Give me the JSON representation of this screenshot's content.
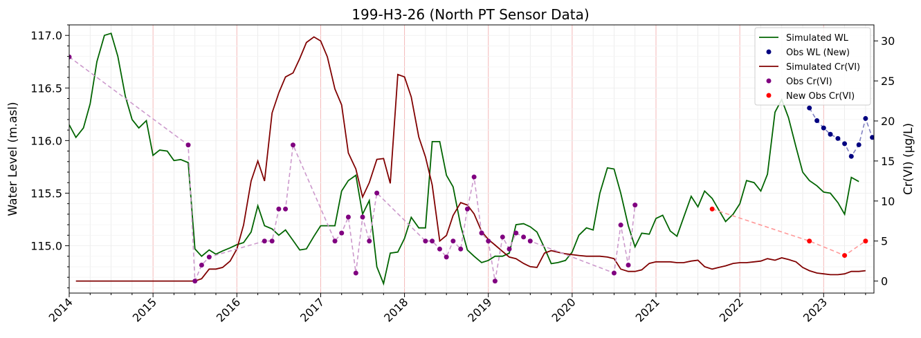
{
  "chart_data": {
    "type": "line",
    "title": "199-H3-26 (North PT Sensor Data)",
    "ylabel_left": "Water Level (m.asl)",
    "ylabel_right": "Cr(VI) (µg/L)",
    "xlim": [
      2014.0,
      2023.6
    ],
    "ylim_left": [
      114.55,
      117.1
    ],
    "ylim_right": [
      -1.5,
      32
    ],
    "x_ticks": [
      {
        "v": 2014,
        "label": "2014"
      },
      {
        "v": 2015,
        "label": "2015"
      },
      {
        "v": 2016,
        "label": "2016"
      },
      {
        "v": 2017,
        "label": "2017"
      },
      {
        "v": 2018,
        "label": "2018"
      },
      {
        "v": 2019,
        "label": "2019"
      },
      {
        "v": 2020,
        "label": "2020"
      },
      {
        "v": 2021,
        "label": "2021"
      },
      {
        "v": 2022,
        "label": "2022"
      },
      {
        "v": 2023,
        "label": "2023"
      }
    ],
    "y_ticks_left": [
      {
        "v": 115.0,
        "label": "115.0"
      },
      {
        "v": 115.5,
        "label": "115.5"
      },
      {
        "v": 116.0,
        "label": "116.0"
      },
      {
        "v": 116.5,
        "label": "116.5"
      },
      {
        "v": 117.0,
        "label": "117.0"
      }
    ],
    "y_ticks_right": [
      {
        "v": 0,
        "label": "0"
      },
      {
        "v": 5,
        "label": "5"
      },
      {
        "v": 10,
        "label": "10"
      },
      {
        "v": 15,
        "label": "15"
      },
      {
        "v": 20,
        "label": "20"
      },
      {
        "v": 25,
        "label": "25"
      },
      {
        "v": 30,
        "label": "30"
      }
    ],
    "grid": true,
    "legend_position": "top-right",
    "series": [
      {
        "name": "Simulated WL",
        "axis": "left",
        "kind": "line",
        "color": "#006400",
        "points": [
          [
            2014.0,
            116.15
          ],
          [
            2014.08,
            116.03
          ],
          [
            2014.17,
            116.12
          ],
          [
            2014.25,
            116.35
          ],
          [
            2014.33,
            116.75
          ],
          [
            2014.42,
            117.0
          ],
          [
            2014.5,
            117.02
          ],
          [
            2014.58,
            116.8
          ],
          [
            2014.67,
            116.42
          ],
          [
            2014.75,
            116.2
          ],
          [
            2014.83,
            116.12
          ],
          [
            2014.92,
            116.19
          ],
          [
            2015.0,
            115.86
          ],
          [
            2015.08,
            115.91
          ],
          [
            2015.17,
            115.9
          ],
          [
            2015.25,
            115.81
          ],
          [
            2015.33,
            115.82
          ],
          [
            2015.42,
            115.79
          ],
          [
            2015.5,
            114.97
          ],
          [
            2015.58,
            114.9
          ],
          [
            2015.67,
            114.96
          ],
          [
            2015.75,
            114.92
          ],
          [
            2015.83,
            114.95
          ],
          [
            2015.92,
            114.98
          ],
          [
            2016.0,
            115.01
          ],
          [
            2016.08,
            115.03
          ],
          [
            2016.17,
            115.13
          ],
          [
            2016.25,
            115.38
          ],
          [
            2016.33,
            115.19
          ],
          [
            2016.42,
            115.16
          ],
          [
            2016.5,
            115.1
          ],
          [
            2016.58,
            115.15
          ],
          [
            2016.67,
            115.05
          ],
          [
            2016.75,
            114.96
          ],
          [
            2016.83,
            114.97
          ],
          [
            2016.92,
            115.09
          ],
          [
            2017.0,
            115.19
          ],
          [
            2017.08,
            115.19
          ],
          [
            2017.17,
            115.19
          ],
          [
            2017.25,
            115.52
          ],
          [
            2017.33,
            115.62
          ],
          [
            2017.42,
            115.67
          ],
          [
            2017.5,
            115.3
          ],
          [
            2017.58,
            115.43
          ],
          [
            2017.67,
            114.8
          ],
          [
            2017.75,
            114.64
          ],
          [
            2017.83,
            114.93
          ],
          [
            2017.92,
            114.94
          ],
          [
            2018.0,
            115.07
          ],
          [
            2018.08,
            115.27
          ],
          [
            2018.17,
            115.17
          ],
          [
            2018.25,
            115.17
          ],
          [
            2018.33,
            115.99
          ],
          [
            2018.42,
            115.99
          ],
          [
            2018.5,
            115.67
          ],
          [
            2018.58,
            115.56
          ],
          [
            2018.67,
            115.19
          ],
          [
            2018.75,
            114.96
          ],
          [
            2018.83,
            114.9
          ],
          [
            2018.92,
            114.84
          ],
          [
            2019.0,
            114.86
          ],
          [
            2019.08,
            114.9
          ],
          [
            2019.17,
            114.9
          ],
          [
            2019.25,
            114.93
          ],
          [
            2019.33,
            115.2
          ],
          [
            2019.42,
            115.21
          ],
          [
            2019.5,
            115.18
          ],
          [
            2019.58,
            115.13
          ],
          [
            2019.67,
            114.98
          ],
          [
            2019.75,
            114.83
          ],
          [
            2019.83,
            114.84
          ],
          [
            2019.92,
            114.86
          ],
          [
            2020.0,
            114.94
          ],
          [
            2020.08,
            115.1
          ],
          [
            2020.17,
            115.17
          ],
          [
            2020.25,
            115.15
          ],
          [
            2020.33,
            115.5
          ],
          [
            2020.42,
            115.74
          ],
          [
            2020.5,
            115.73
          ],
          [
            2020.58,
            115.5
          ],
          [
            2020.67,
            115.19
          ],
          [
            2020.75,
            114.99
          ],
          [
            2020.83,
            115.12
          ],
          [
            2020.92,
            115.11
          ],
          [
            2021.0,
            115.26
          ],
          [
            2021.08,
            115.29
          ],
          [
            2021.17,
            115.14
          ],
          [
            2021.25,
            115.09
          ],
          [
            2021.33,
            115.27
          ],
          [
            2021.42,
            115.47
          ],
          [
            2021.5,
            115.37
          ],
          [
            2021.58,
            115.52
          ],
          [
            2021.67,
            115.45
          ],
          [
            2021.75,
            115.34
          ],
          [
            2021.83,
            115.23
          ],
          [
            2021.92,
            115.3
          ],
          [
            2022.0,
            115.4
          ],
          [
            2022.08,
            115.62
          ],
          [
            2022.17,
            115.6
          ],
          [
            2022.25,
            115.52
          ],
          [
            2022.33,
            115.68
          ],
          [
            2022.42,
            116.27
          ],
          [
            2022.5,
            116.39
          ],
          [
            2022.58,
            116.22
          ],
          [
            2022.67,
            115.94
          ],
          [
            2022.75,
            115.7
          ],
          [
            2022.83,
            115.62
          ],
          [
            2022.92,
            115.57
          ],
          [
            2023.0,
            115.51
          ],
          [
            2023.08,
            115.5
          ],
          [
            2023.17,
            115.41
          ],
          [
            2023.25,
            115.3
          ],
          [
            2023.33,
            115.65
          ],
          [
            2023.42,
            115.61
          ]
        ]
      },
      {
        "name": "Obs WL (New)",
        "axis": "left",
        "kind": "scatter",
        "color": "#000080",
        "connector_color": "#8080c0",
        "points": [
          [
            2022.83,
            116.31
          ],
          [
            2022.92,
            116.19
          ],
          [
            2023.0,
            116.12
          ],
          [
            2023.08,
            116.06
          ],
          [
            2023.17,
            116.02
          ],
          [
            2023.25,
            115.97
          ],
          [
            2023.33,
            115.85
          ],
          [
            2023.42,
            115.96
          ],
          [
            2023.5,
            116.21
          ],
          [
            2023.58,
            116.03
          ],
          [
            2023.67,
            115.97
          ]
        ]
      },
      {
        "name": "Simulated Cr(VI)",
        "axis": "right",
        "kind": "line",
        "color": "#800000",
        "points": [
          [
            2014.08,
            0
          ],
          [
            2015.5,
            0
          ],
          [
            2015.58,
            0.3
          ],
          [
            2015.67,
            1.5
          ],
          [
            2015.75,
            1.5
          ],
          [
            2015.83,
            1.7
          ],
          [
            2015.92,
            2.5
          ],
          [
            2016.0,
            4.0
          ],
          [
            2016.08,
            7.0
          ],
          [
            2016.17,
            12.5
          ],
          [
            2016.25,
            15.0
          ],
          [
            2016.33,
            12.5
          ],
          [
            2016.42,
            21.0
          ],
          [
            2016.5,
            23.5
          ],
          [
            2016.58,
            25.5
          ],
          [
            2016.67,
            26.0
          ],
          [
            2016.75,
            27.8
          ],
          [
            2016.83,
            29.8
          ],
          [
            2016.92,
            30.5
          ],
          [
            2017.0,
            30.0
          ],
          [
            2017.08,
            28.0
          ],
          [
            2017.17,
            24.0
          ],
          [
            2017.25,
            22.0
          ],
          [
            2017.33,
            16.0
          ],
          [
            2017.42,
            14.0
          ],
          [
            2017.5,
            10.5
          ],
          [
            2017.58,
            12.3
          ],
          [
            2017.67,
            15.2
          ],
          [
            2017.75,
            15.3
          ],
          [
            2017.83,
            12.2
          ],
          [
            2017.92,
            25.8
          ],
          [
            2018.0,
            25.5
          ],
          [
            2018.08,
            23.0
          ],
          [
            2018.17,
            18.0
          ],
          [
            2018.25,
            15.5
          ],
          [
            2018.33,
            12.0
          ],
          [
            2018.42,
            5.0
          ],
          [
            2018.5,
            5.7
          ],
          [
            2018.58,
            8.2
          ],
          [
            2018.67,
            9.8
          ],
          [
            2018.75,
            9.5
          ],
          [
            2018.83,
            8.4
          ],
          [
            2018.92,
            6.2
          ],
          [
            2019.0,
            5.2
          ],
          [
            2019.08,
            4.5
          ],
          [
            2019.17,
            3.7
          ],
          [
            2019.25,
            3.0
          ],
          [
            2019.33,
            2.8
          ],
          [
            2019.42,
            2.2
          ],
          [
            2019.5,
            1.8
          ],
          [
            2019.58,
            1.7
          ],
          [
            2019.67,
            3.5
          ],
          [
            2019.75,
            3.8
          ],
          [
            2019.83,
            3.6
          ],
          [
            2019.92,
            3.4
          ],
          [
            2020.0,
            3.3
          ],
          [
            2020.08,
            3.2
          ],
          [
            2020.17,
            3.1
          ],
          [
            2020.25,
            3.1
          ],
          [
            2020.33,
            3.1
          ],
          [
            2020.42,
            3.0
          ],
          [
            2020.5,
            2.8
          ],
          [
            2020.58,
            1.5
          ],
          [
            2020.67,
            1.2
          ],
          [
            2020.75,
            1.2
          ],
          [
            2020.83,
            1.4
          ],
          [
            2020.92,
            2.2
          ],
          [
            2021.0,
            2.4
          ],
          [
            2021.08,
            2.4
          ],
          [
            2021.17,
            2.4
          ],
          [
            2021.25,
            2.3
          ],
          [
            2021.33,
            2.3
          ],
          [
            2021.42,
            2.5
          ],
          [
            2021.5,
            2.6
          ],
          [
            2021.58,
            1.8
          ],
          [
            2021.67,
            1.5
          ],
          [
            2021.75,
            1.7
          ],
          [
            2021.83,
            1.9
          ],
          [
            2021.92,
            2.2
          ],
          [
            2022.0,
            2.3
          ],
          [
            2022.08,
            2.3
          ],
          [
            2022.17,
            2.4
          ],
          [
            2022.25,
            2.5
          ],
          [
            2022.33,
            2.8
          ],
          [
            2022.42,
            2.6
          ],
          [
            2022.5,
            2.9
          ],
          [
            2022.58,
            2.7
          ],
          [
            2022.67,
            2.4
          ],
          [
            2022.75,
            1.7
          ],
          [
            2022.83,
            1.3
          ],
          [
            2022.92,
            1.0
          ],
          [
            2023.0,
            0.9
          ],
          [
            2023.08,
            0.8
          ],
          [
            2023.17,
            0.8
          ],
          [
            2023.25,
            0.9
          ],
          [
            2023.33,
            1.2
          ],
          [
            2023.42,
            1.2
          ],
          [
            2023.5,
            1.3
          ]
        ]
      },
      {
        "name": "Obs Cr(VI)",
        "axis": "right",
        "kind": "scatter",
        "color": "#800080",
        "connector_color": "#cc99cc",
        "points": [
          [
            2014.0,
            28
          ],
          [
            2015.42,
            17
          ],
          [
            2015.5,
            0
          ],
          [
            2015.58,
            2
          ],
          [
            2015.67,
            3
          ],
          [
            2016.33,
            5
          ],
          [
            2016.42,
            5
          ],
          [
            2016.5,
            9
          ],
          [
            2016.58,
            9
          ],
          [
            2016.67,
            17
          ],
          [
            2017.17,
            5
          ],
          [
            2017.25,
            6
          ],
          [
            2017.33,
            8
          ],
          [
            2017.42,
            1
          ],
          [
            2017.5,
            8
          ],
          [
            2017.58,
            5
          ],
          [
            2017.67,
            11
          ],
          [
            2018.25,
            5
          ],
          [
            2018.33,
            5
          ],
          [
            2018.42,
            4
          ],
          [
            2018.5,
            3
          ],
          [
            2018.58,
            5
          ],
          [
            2018.67,
            4
          ],
          [
            2018.75,
            9
          ],
          [
            2018.83,
            13
          ],
          [
            2018.92,
            6
          ],
          [
            2019.0,
            5
          ],
          [
            2019.08,
            0
          ],
          [
            2019.17,
            5.5
          ],
          [
            2019.25,
            4
          ],
          [
            2019.33,
            6
          ],
          [
            2019.42,
            5.5
          ],
          [
            2019.5,
            5
          ],
          [
            2020.5,
            1
          ],
          [
            2020.58,
            7
          ],
          [
            2020.67,
            2
          ],
          [
            2020.75,
            9.5
          ]
        ]
      },
      {
        "name": "New Obs Cr(VI)",
        "axis": "right",
        "kind": "scatter",
        "color": "#ff0000",
        "connector_color": "#ff9999",
        "points": [
          [
            2021.67,
            9
          ],
          [
            2022.83,
            5
          ],
          [
            2023.25,
            3.2
          ],
          [
            2023.5,
            5
          ]
        ]
      }
    ]
  }
}
